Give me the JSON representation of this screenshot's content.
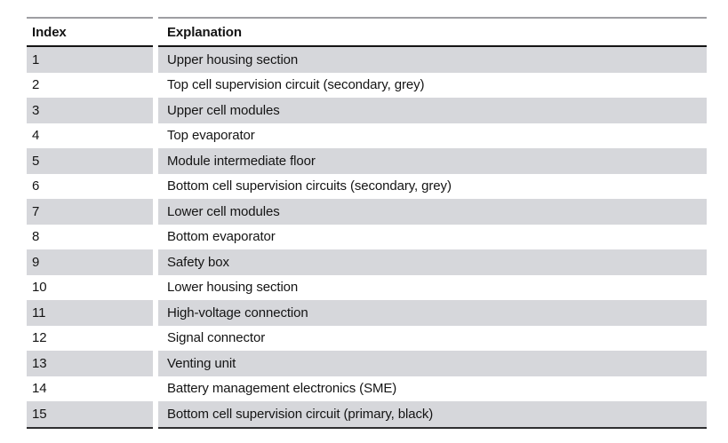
{
  "colors": {
    "background": "#ffffff",
    "stripe": "#d6d7db",
    "rule_top": "#9e9ea2",
    "rule_header": "#141414",
    "rule_bottom": "#2e2e30",
    "text": "#141414"
  },
  "table": {
    "header": {
      "index": "Index",
      "explanation": "Explanation"
    },
    "rows": [
      {
        "index": "1",
        "explanation": "Upper housing section"
      },
      {
        "index": "2",
        "explanation": "Top cell supervision circuit (secondary, grey)"
      },
      {
        "index": "3",
        "explanation": "Upper cell modules"
      },
      {
        "index": "4",
        "explanation": "Top evaporator"
      },
      {
        "index": "5",
        "explanation": "Module intermediate floor"
      },
      {
        "index": "6",
        "explanation": "Bottom cell supervision circuits (secondary, grey)"
      },
      {
        "index": "7",
        "explanation": "Lower cell modules"
      },
      {
        "index": "8",
        "explanation": "Bottom evaporator"
      },
      {
        "index": "9",
        "explanation": "Safety box"
      },
      {
        "index": "10",
        "explanation": "Lower housing section"
      },
      {
        "index": "11",
        "explanation": "High-voltage connection"
      },
      {
        "index": "12",
        "explanation": "Signal connector"
      },
      {
        "index": "13",
        "explanation": "Venting unit"
      },
      {
        "index": "14",
        "explanation": "Battery management electronics (SME)"
      },
      {
        "index": "15",
        "explanation": "Bottom cell supervision circuit (primary, black)"
      }
    ]
  }
}
